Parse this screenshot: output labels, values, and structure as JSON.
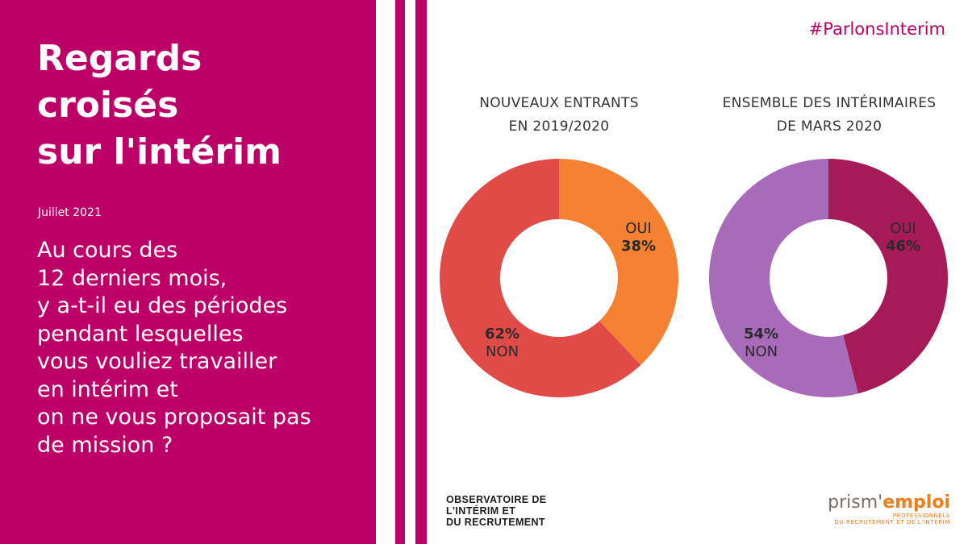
{
  "colors": {
    "brand": "#bc0067",
    "oui_left": "#f58232",
    "non_left": "#e04a47",
    "oui_right": "#a71a58",
    "non_right": "#a86bb9"
  },
  "left_panel": {
    "title": "Regards\ncroisés\nsur l'intérim",
    "date": "Juillet 2021",
    "question": "Au cours des\n12 derniers mois,\ny a-t-il eu des périodes\npendant lesquelles\nvous vouliez travailler\nen intérim et\non ne vous proposait pas\nde mission ?"
  },
  "hashtag": "#ParlonsInterim",
  "chart_data": [
    {
      "type": "pie",
      "title": "NOUVEAUX ENTRANTS\nEN 2019/2020",
      "slices": [
        {
          "label": "OUI",
          "value": 38,
          "display": "38%"
        },
        {
          "label": "NON",
          "value": 62,
          "display": "62%"
        }
      ]
    },
    {
      "type": "pie",
      "title": "ENSEMBLE DES INTÉRIMAIRES\nDE MARS 2020",
      "slices": [
        {
          "label": "OUI",
          "value": 46,
          "display": "46%"
        },
        {
          "label": "NON",
          "value": 54,
          "display": "54%"
        }
      ]
    }
  ],
  "logos": {
    "observatoire": {
      "line1": "OBSERVATOIRE DE",
      "line2": "L'INTÉRIM ET",
      "line3": "DU RECRUTEMENT"
    },
    "prismemploi": {
      "word_a": "prism'",
      "word_b": "emploi",
      "sub1": "PROFESSIONNELS",
      "sub2": "DU RECRUTEMENT ET DE L'INTÉRIM"
    }
  }
}
